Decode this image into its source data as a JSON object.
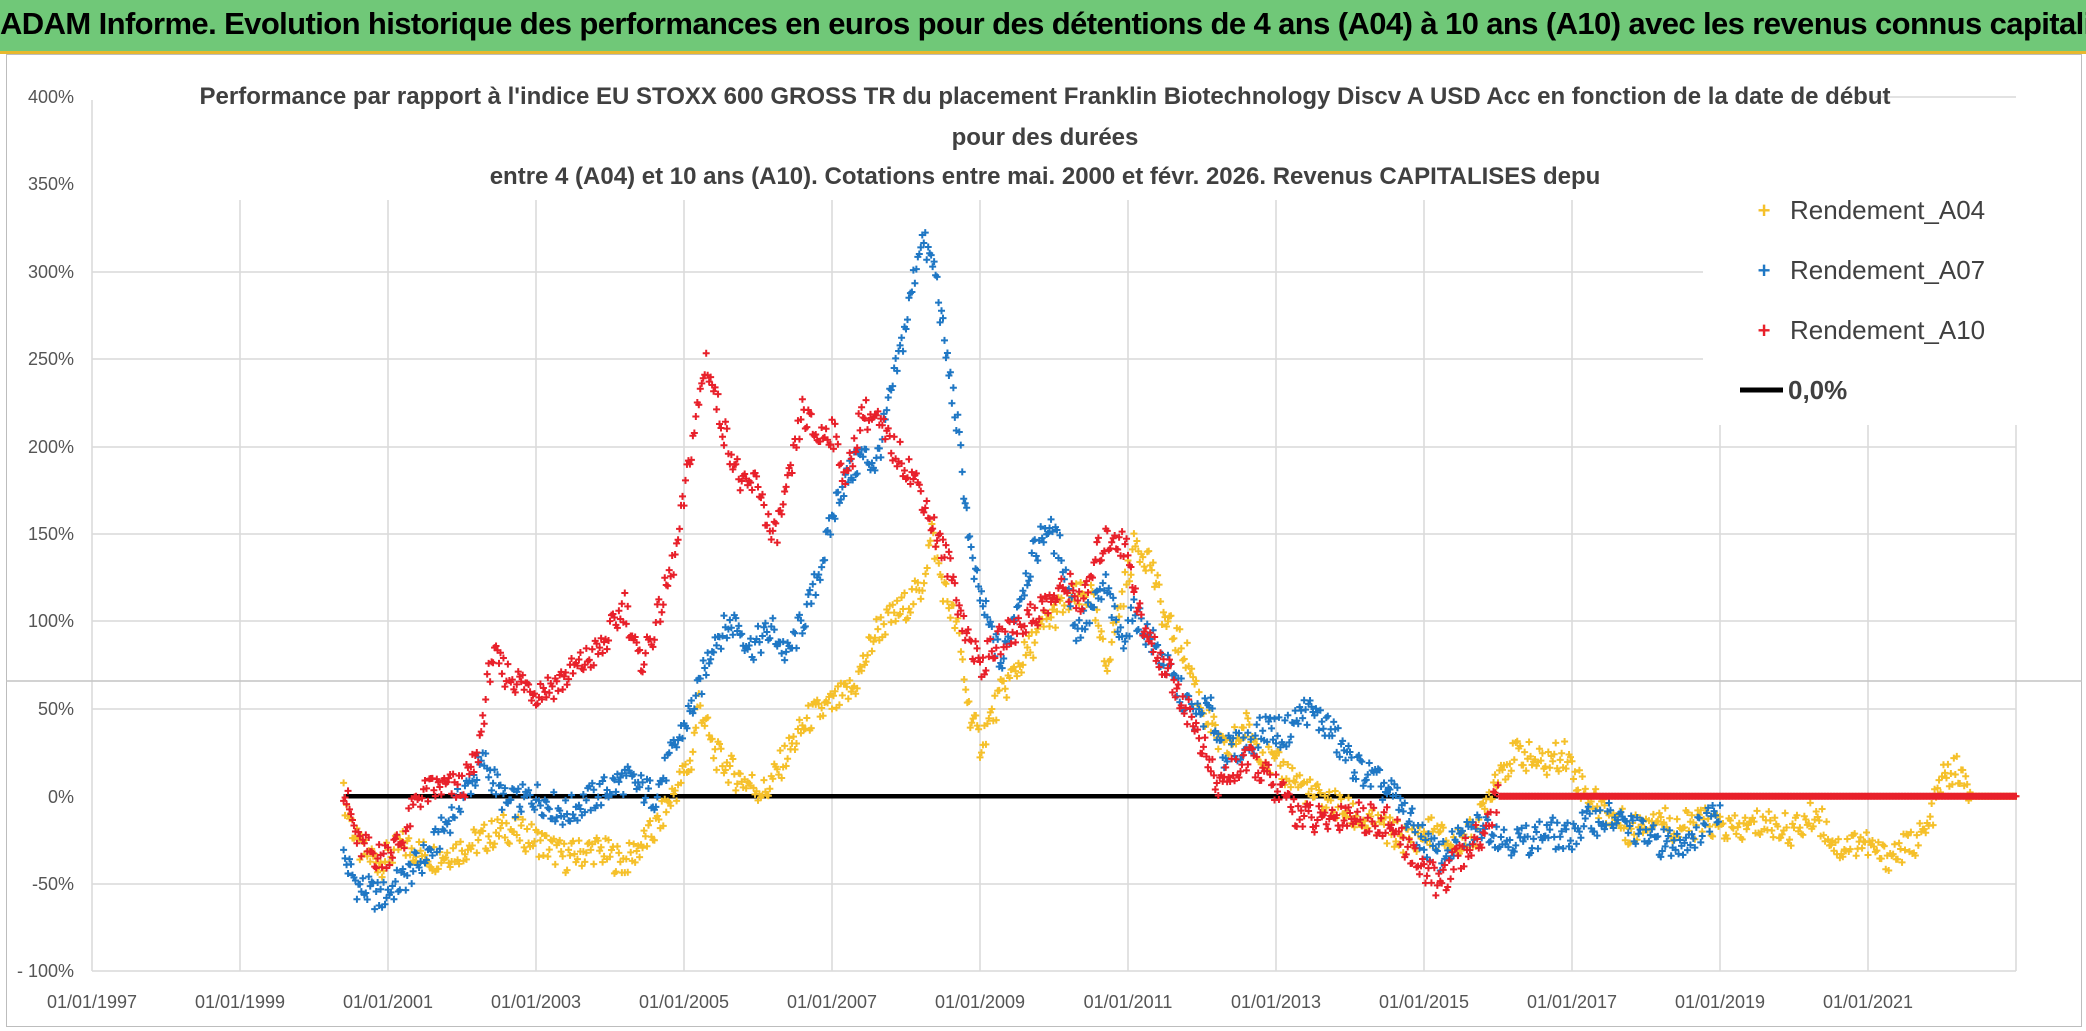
{
  "header": {
    "banner": "ADAM Informe. Evolution historique des performances en euros pour des détentions de 4 ans (A04) à 10 ans (A10) avec les revenus connus capitalisés"
  },
  "chart_data": {
    "type": "scatter",
    "title_lines": [
      "Performance par rapport à l'indice EU STOXX 600 GROSS TR  du placement Franklin Biotechnology Discv A USD Acc en fonction de la date de début",
      "pour des durées",
      "entre 4 (A04) et 10 ans (A10). Cotations entre mai. 2000 et févr. 2026. Revenus CAPITALISES depu"
    ],
    "ylim": [
      -100,
      400
    ],
    "yticks": [
      400,
      350,
      300,
      250,
      200,
      150,
      100,
      50,
      0,
      -50,
      -100
    ],
    "ytick_labels": [
      "400%",
      "350%",
      "300%",
      "250%",
      "200%",
      "150%",
      "100%",
      "50%",
      "0%",
      "-50%",
      "- 100%"
    ],
    "xlim": [
      1997.0,
      2023.0
    ],
    "xticks": [
      1997,
      1999,
      2001,
      2003,
      2005,
      2007,
      2009,
      2011,
      2013,
      2015,
      2017,
      2019,
      2021
    ],
    "xtick_labels": [
      "01/01/1997",
      "01/01/1999",
      "01/01/2001",
      "01/01/2003",
      "01/01/2005",
      "01/01/2007",
      "01/01/2009",
      "01/01/2011",
      "01/01/2013",
      "01/01/2015",
      "01/01/2017",
      "01/01/2019",
      "01/01/2021"
    ],
    "series": [
      {
        "name": "Rendement_A04",
        "color": "#f5c02a",
        "points": [
          [
            2000.4,
            0
          ],
          [
            2000.6,
            -30
          ],
          [
            2000.9,
            -38
          ],
          [
            2001.2,
            -28
          ],
          [
            2001.6,
            -35
          ],
          [
            2002.0,
            -30
          ],
          [
            2002.4,
            -22
          ],
          [
            2002.6,
            -18
          ],
          [
            2003.0,
            -25
          ],
          [
            2003.4,
            -35
          ],
          [
            2003.8,
            -30
          ],
          [
            2004.2,
            -38
          ],
          [
            2004.6,
            -20
          ],
          [
            2004.9,
            5
          ],
          [
            2005.1,
            20
          ],
          [
            2005.2,
            55
          ],
          [
            2005.4,
            25
          ],
          [
            2005.7,
            12
          ],
          [
            2006.1,
            2
          ],
          [
            2006.4,
            25
          ],
          [
            2006.7,
            45
          ],
          [
            2007.0,
            52
          ],
          [
            2007.3,
            62
          ],
          [
            2007.6,
            95
          ],
          [
            2007.9,
            105
          ],
          [
            2008.2,
            118
          ],
          [
            2008.35,
            150
          ],
          [
            2008.5,
            120
          ],
          [
            2008.7,
            95
          ],
          [
            2008.85,
            50
          ],
          [
            2009.0,
            30
          ],
          [
            2009.3,
            60
          ],
          [
            2009.6,
            80
          ],
          [
            2009.9,
            100
          ],
          [
            2010.2,
            112
          ],
          [
            2010.5,
            115
          ],
          [
            2010.7,
            75
          ],
          [
            2010.9,
            110
          ],
          [
            2011.1,
            145
          ],
          [
            2011.3,
            135
          ],
          [
            2011.5,
            100
          ],
          [
            2011.8,
            80
          ],
          [
            2012.0,
            50
          ],
          [
            2012.3,
            25
          ],
          [
            2012.6,
            40
          ],
          [
            2012.9,
            20
          ],
          [
            2013.2,
            12
          ],
          [
            2013.5,
            0
          ],
          [
            2013.8,
            -5
          ],
          [
            2014.2,
            -15
          ],
          [
            2014.5,
            -20
          ],
          [
            2014.8,
            -25
          ],
          [
            2015.1,
            -20
          ],
          [
            2015.4,
            -28
          ],
          [
            2015.7,
            -20
          ],
          [
            2016.0,
            15
          ],
          [
            2016.3,
            25
          ],
          [
            2016.6,
            18
          ],
          [
            2016.9,
            25
          ],
          [
            2017.2,
            0
          ],
          [
            2017.5,
            -10
          ],
          [
            2017.8,
            -20
          ],
          [
            2018.1,
            -10
          ],
          [
            2018.4,
            -18
          ],
          [
            2018.8,
            -15
          ],
          [
            2019.2,
            -20
          ],
          [
            2019.6,
            -15
          ],
          [
            2020.0,
            -20
          ],
          [
            2020.3,
            -10
          ],
          [
            2020.6,
            -30
          ],
          [
            2020.9,
            -25
          ],
          [
            2021.2,
            -35
          ],
          [
            2021.5,
            -30
          ],
          [
            2021.8,
            -20
          ],
          [
            2022.0,
            10
          ],
          [
            2022.2,
            15
          ],
          [
            2022.4,
            0
          ],
          [
            2022.6,
            0
          ],
          [
            2023.0,
            0
          ]
        ]
      },
      {
        "name": "Rendement_A07",
        "color": "#1f77c4",
        "points": [
          [
            2000.4,
            -35
          ],
          [
            2000.6,
            -52
          ],
          [
            2000.9,
            -58
          ],
          [
            2001.2,
            -48
          ],
          [
            2001.6,
            -30
          ],
          [
            2002.0,
            0
          ],
          [
            2002.3,
            20
          ],
          [
            2002.6,
            -5
          ],
          [
            2003.0,
            0
          ],
          [
            2003.4,
            -10
          ],
          [
            2003.8,
            0
          ],
          [
            2004.2,
            10
          ],
          [
            2004.6,
            0
          ],
          [
            2004.9,
            30
          ],
          [
            2005.2,
            60
          ],
          [
            2005.4,
            90
          ],
          [
            2005.7,
            100
          ],
          [
            2005.9,
            85
          ],
          [
            2006.2,
            95
          ],
          [
            2006.4,
            80
          ],
          [
            2006.7,
            110
          ],
          [
            2006.9,
            140
          ],
          [
            2007.1,
            175
          ],
          [
            2007.4,
            195
          ],
          [
            2007.6,
            190
          ],
          [
            2007.8,
            230
          ],
          [
            2008.0,
            270
          ],
          [
            2008.2,
            320
          ],
          [
            2008.4,
            300
          ],
          [
            2008.5,
            265
          ],
          [
            2008.7,
            210
          ],
          [
            2008.9,
            130
          ],
          [
            2009.1,
            100
          ],
          [
            2009.3,
            75
          ],
          [
            2009.5,
            110
          ],
          [
            2009.7,
            135
          ],
          [
            2009.9,
            155
          ],
          [
            2010.1,
            140
          ],
          [
            2010.3,
            95
          ],
          [
            2010.5,
            105
          ],
          [
            2010.7,
            120
          ],
          [
            2010.9,
            90
          ],
          [
            2011.1,
            105
          ],
          [
            2011.3,
            90
          ],
          [
            2011.5,
            75
          ],
          [
            2011.7,
            60
          ],
          [
            2011.9,
            45
          ],
          [
            2012.1,
            50
          ],
          [
            2012.3,
            25
          ],
          [
            2012.6,
            30
          ],
          [
            2012.9,
            40
          ],
          [
            2013.1,
            35
          ],
          [
            2013.4,
            50
          ],
          [
            2013.7,
            40
          ],
          [
            2014.0,
            20
          ],
          [
            2014.3,
            10
          ],
          [
            2014.6,
            0
          ],
          [
            2014.9,
            -20
          ],
          [
            2015.2,
            -35
          ],
          [
            2015.5,
            -25
          ],
          [
            2015.8,
            -15
          ],
          [
            2016.1,
            -25
          ],
          [
            2016.4,
            -25
          ],
          [
            2016.7,
            -20
          ],
          [
            2016.9,
            -25
          ],
          [
            2017.2,
            -15
          ],
          [
            2017.5,
            -12
          ],
          [
            2017.8,
            -18
          ],
          [
            2018.1,
            -25
          ],
          [
            2018.4,
            -28
          ],
          [
            2018.7,
            -20
          ],
          [
            2018.9,
            -10
          ],
          [
            2019.0,
            -5
          ]
        ]
      },
      {
        "name": "Rendement_A10",
        "color": "#e8202a",
        "points": [
          [
            2000.4,
            5
          ],
          [
            2000.6,
            -28
          ],
          [
            2000.9,
            -35
          ],
          [
            2001.2,
            -25
          ],
          [
            2001.4,
            0
          ],
          [
            2001.7,
            5
          ],
          [
            2002.0,
            5
          ],
          [
            2002.2,
            20
          ],
          [
            2002.4,
            80
          ],
          [
            2002.6,
            70
          ],
          [
            2002.8,
            65
          ],
          [
            2003.0,
            60
          ],
          [
            2003.3,
            65
          ],
          [
            2003.6,
            75
          ],
          [
            2003.9,
            85
          ],
          [
            2004.2,
            110
          ],
          [
            2004.4,
            75
          ],
          [
            2004.6,
            95
          ],
          [
            2004.9,
            140
          ],
          [
            2005.1,
            200
          ],
          [
            2005.3,
            250
          ],
          [
            2005.5,
            215
          ],
          [
            2005.8,
            175
          ],
          [
            2006.0,
            180
          ],
          [
            2006.2,
            145
          ],
          [
            2006.4,
            175
          ],
          [
            2006.6,
            220
          ],
          [
            2006.8,
            205
          ],
          [
            2007.0,
            210
          ],
          [
            2007.2,
            180
          ],
          [
            2007.4,
            220
          ],
          [
            2007.6,
            215
          ],
          [
            2007.8,
            200
          ],
          [
            2008.0,
            190
          ],
          [
            2008.2,
            175
          ],
          [
            2008.4,
            150
          ],
          [
            2008.6,
            130
          ],
          [
            2008.8,
            95
          ],
          [
            2009.0,
            75
          ],
          [
            2009.3,
            90
          ],
          [
            2009.6,
            100
          ],
          [
            2009.9,
            110
          ],
          [
            2010.2,
            120
          ],
          [
            2010.4,
            110
          ],
          [
            2010.6,
            140
          ],
          [
            2010.8,
            150
          ],
          [
            2011.0,
            140
          ],
          [
            2011.2,
            95
          ],
          [
            2011.5,
            75
          ],
          [
            2011.8,
            50
          ],
          [
            2012.0,
            30
          ],
          [
            2012.2,
            5
          ],
          [
            2012.4,
            15
          ],
          [
            2012.7,
            20
          ],
          [
            2013.0,
            5
          ],
          [
            2013.3,
            -10
          ],
          [
            2013.6,
            -15
          ],
          [
            2013.9,
            -10
          ],
          [
            2014.2,
            -12
          ],
          [
            2014.5,
            -15
          ],
          [
            2014.8,
            -30
          ],
          [
            2015.0,
            -42
          ],
          [
            2015.2,
            -50
          ],
          [
            2015.5,
            -35
          ],
          [
            2015.8,
            -20
          ],
          [
            2016.0,
            0
          ],
          [
            2023.0,
            0
          ]
        ]
      },
      {
        "name": "0,0%",
        "color": "#000000",
        "line": [
          [
            2000.4,
            0
          ],
          [
            2016.0,
            0
          ]
        ]
      }
    ]
  }
}
